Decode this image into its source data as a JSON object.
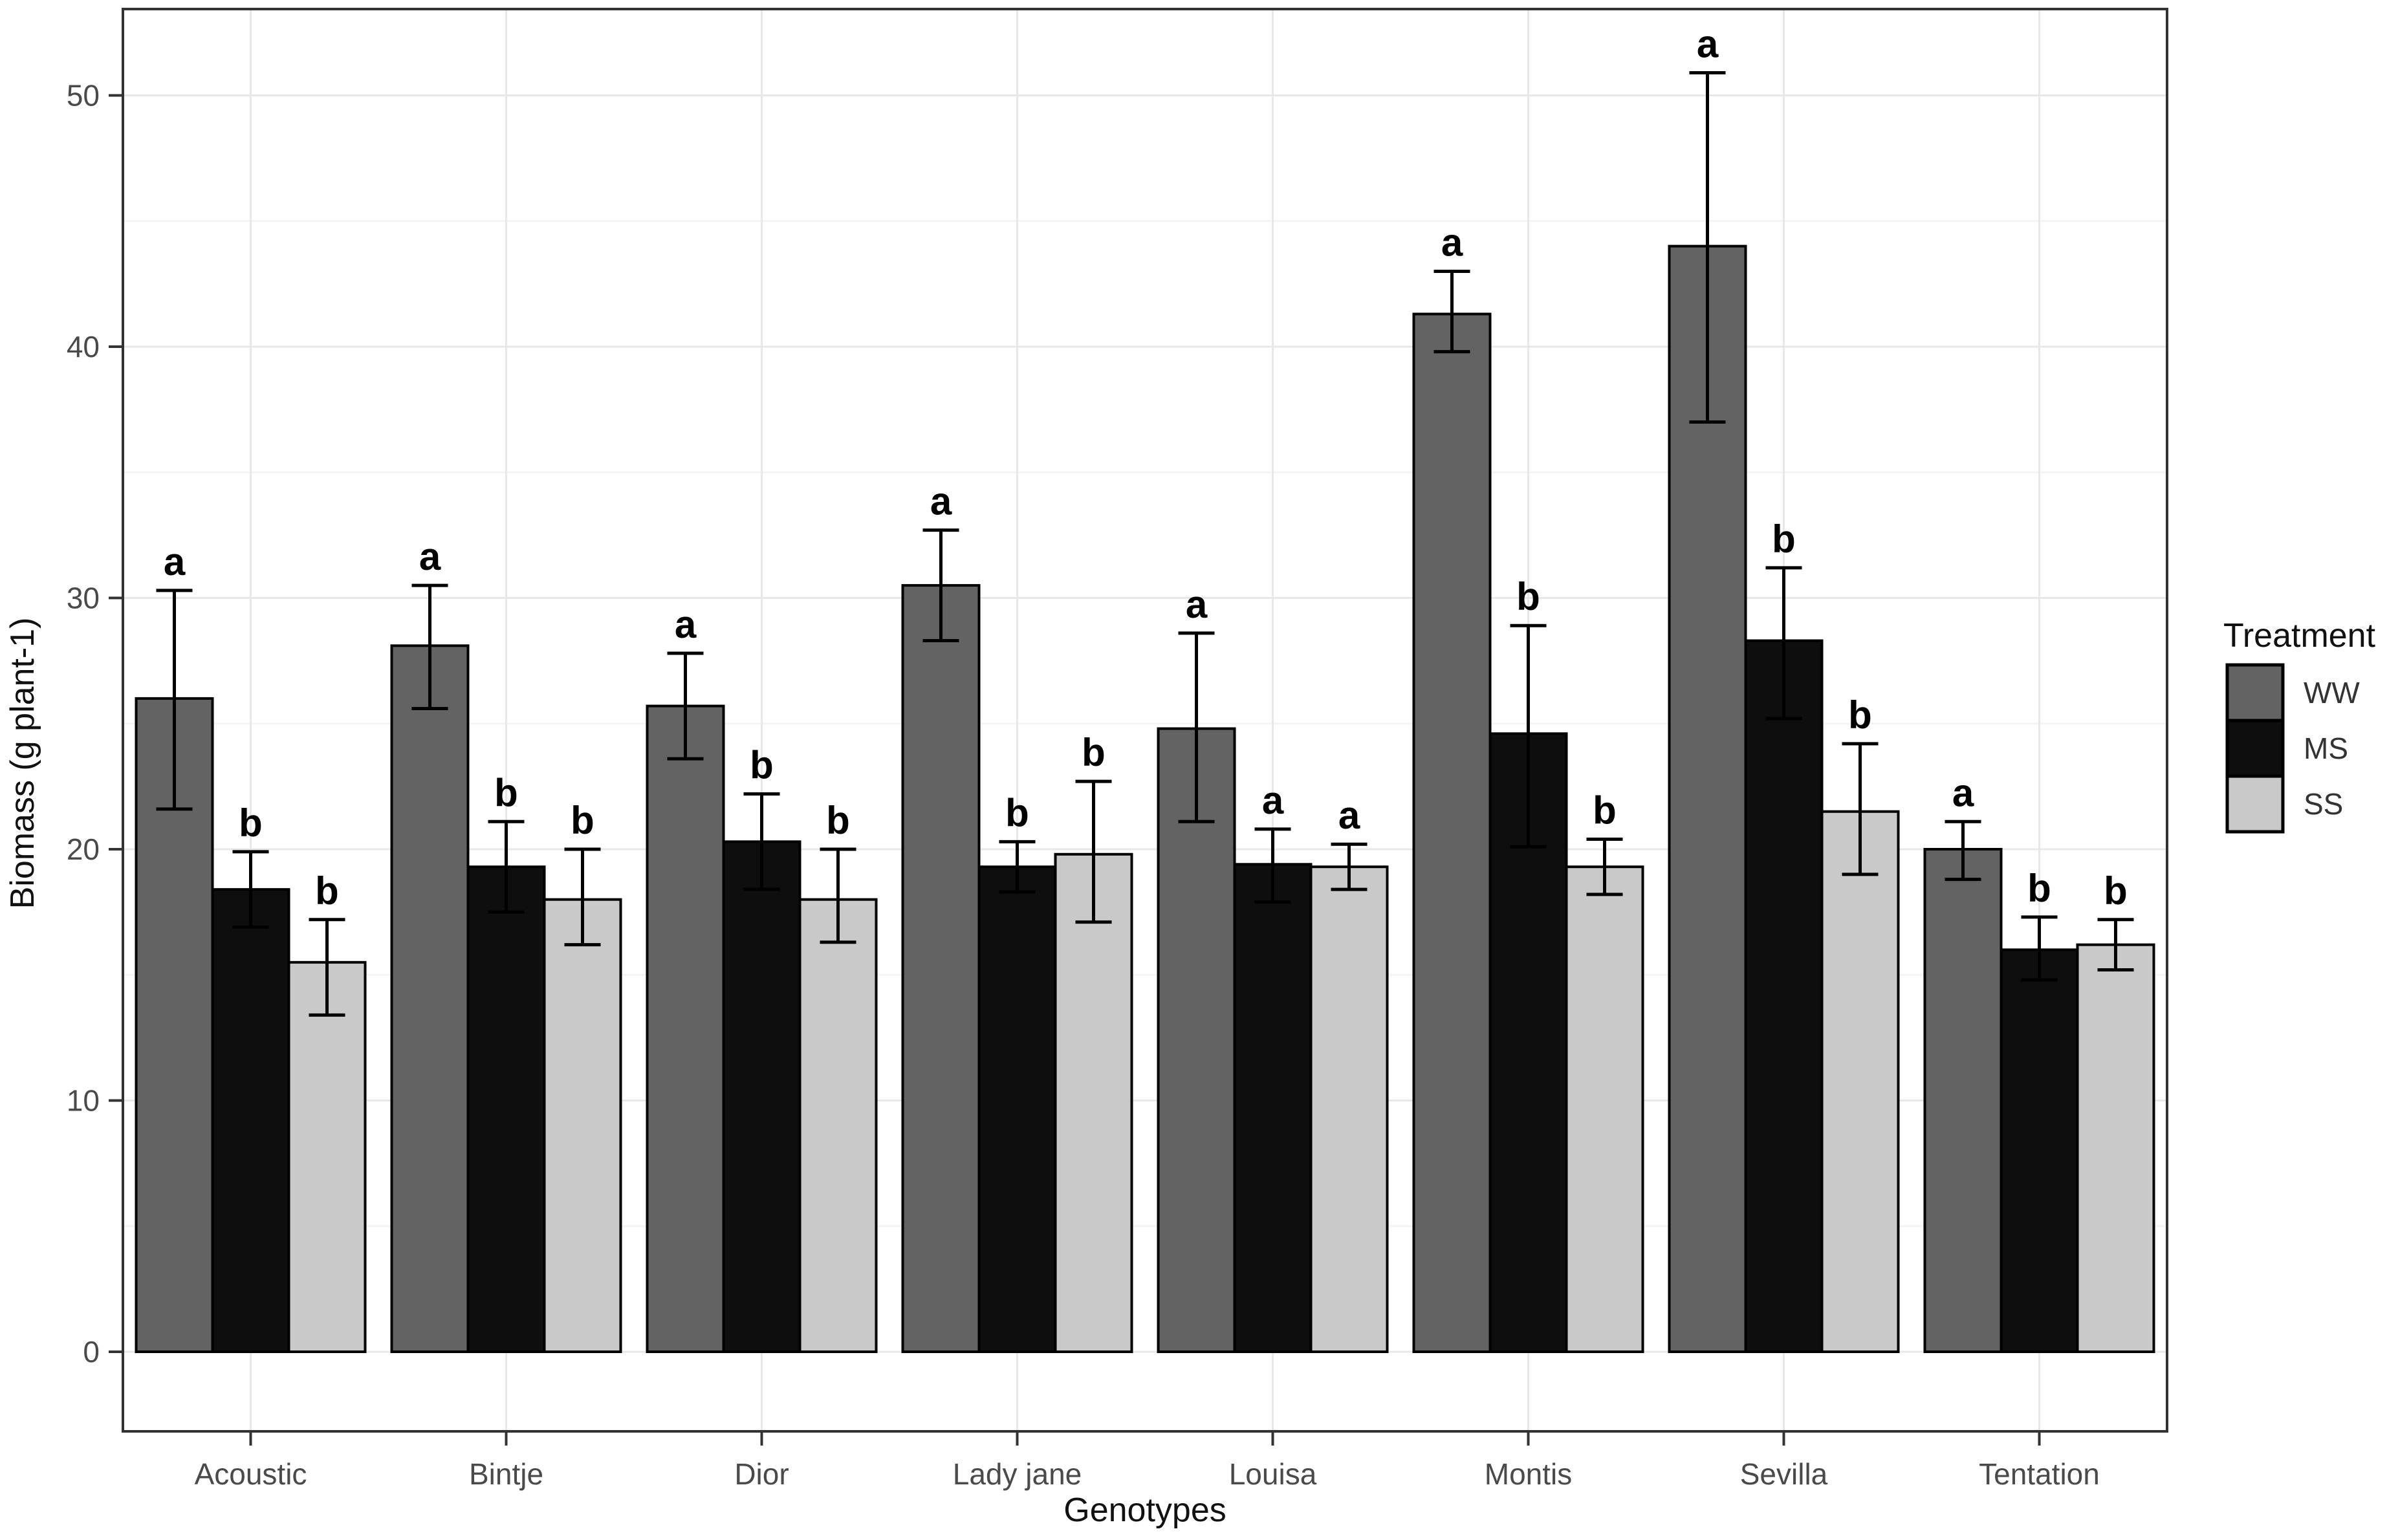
{
  "chart_data": {
    "type": "bar",
    "title": "",
    "xlabel": "Genotypes",
    "ylabel": "Biomass (g plant-1)",
    "categories": [
      "Acoustic",
      "Bintje",
      "Dior",
      "Lady jane",
      "Louisa",
      "Montis",
      "Sevilla",
      "Tentation"
    ],
    "series": [
      {
        "name": "WW",
        "color": "#636363",
        "values": [
          26.0,
          28.1,
          25.7,
          30.5,
          24.8,
          41.3,
          44.0,
          20.0
        ],
        "err_low": [
          21.6,
          25.6,
          23.6,
          28.3,
          21.1,
          39.8,
          37.0,
          18.8
        ],
        "err_high": [
          30.3,
          30.5,
          27.8,
          32.7,
          28.6,
          43.0,
          50.9,
          21.1
        ],
        "letters": [
          "a",
          "a",
          "a",
          "a",
          "a",
          "a",
          "a",
          "a"
        ]
      },
      {
        "name": "MS",
        "color": "#0e0e0e",
        "values": [
          18.4,
          19.3,
          20.3,
          19.3,
          19.4,
          24.6,
          28.3,
          16.0
        ],
        "err_low": [
          16.9,
          17.5,
          18.4,
          18.3,
          17.9,
          20.1,
          25.2,
          14.8
        ],
        "err_high": [
          19.9,
          21.1,
          22.2,
          20.3,
          20.8,
          28.9,
          31.2,
          17.3
        ],
        "letters": [
          "b",
          "b",
          "b",
          "b",
          "a",
          "b",
          "b",
          "b"
        ]
      },
      {
        "name": "SS",
        "color": "#c9c9c9",
        "values": [
          15.5,
          18.0,
          18.0,
          19.8,
          19.3,
          19.3,
          21.5,
          16.2
        ],
        "err_low": [
          13.4,
          16.2,
          16.3,
          17.1,
          18.4,
          18.2,
          19.0,
          15.2
        ],
        "err_high": [
          17.2,
          20.0,
          20.0,
          22.7,
          20.2,
          20.4,
          24.2,
          17.2
        ],
        "letters": [
          "b",
          "b",
          "b",
          "b",
          "a",
          "b",
          "b",
          "b"
        ]
      }
    ],
    "ylim": [
      0,
      53.4
    ],
    "yticks": [
      0,
      10,
      20,
      30,
      40,
      50
    ],
    "yticks_minor": [
      5,
      15,
      25,
      35,
      45
    ],
    "grid": "horizontal major+minor, vertical at category centers",
    "legend_title": "Treatment",
    "legend_position": "right",
    "colors": {
      "grid_major": "#e8e8e8",
      "grid_minor": "#f4f4f4",
      "panel_border": "#333333",
      "error_bar": "#000000",
      "bar_outline": "#000000",
      "tick_text": "#4a4a4a"
    }
  }
}
